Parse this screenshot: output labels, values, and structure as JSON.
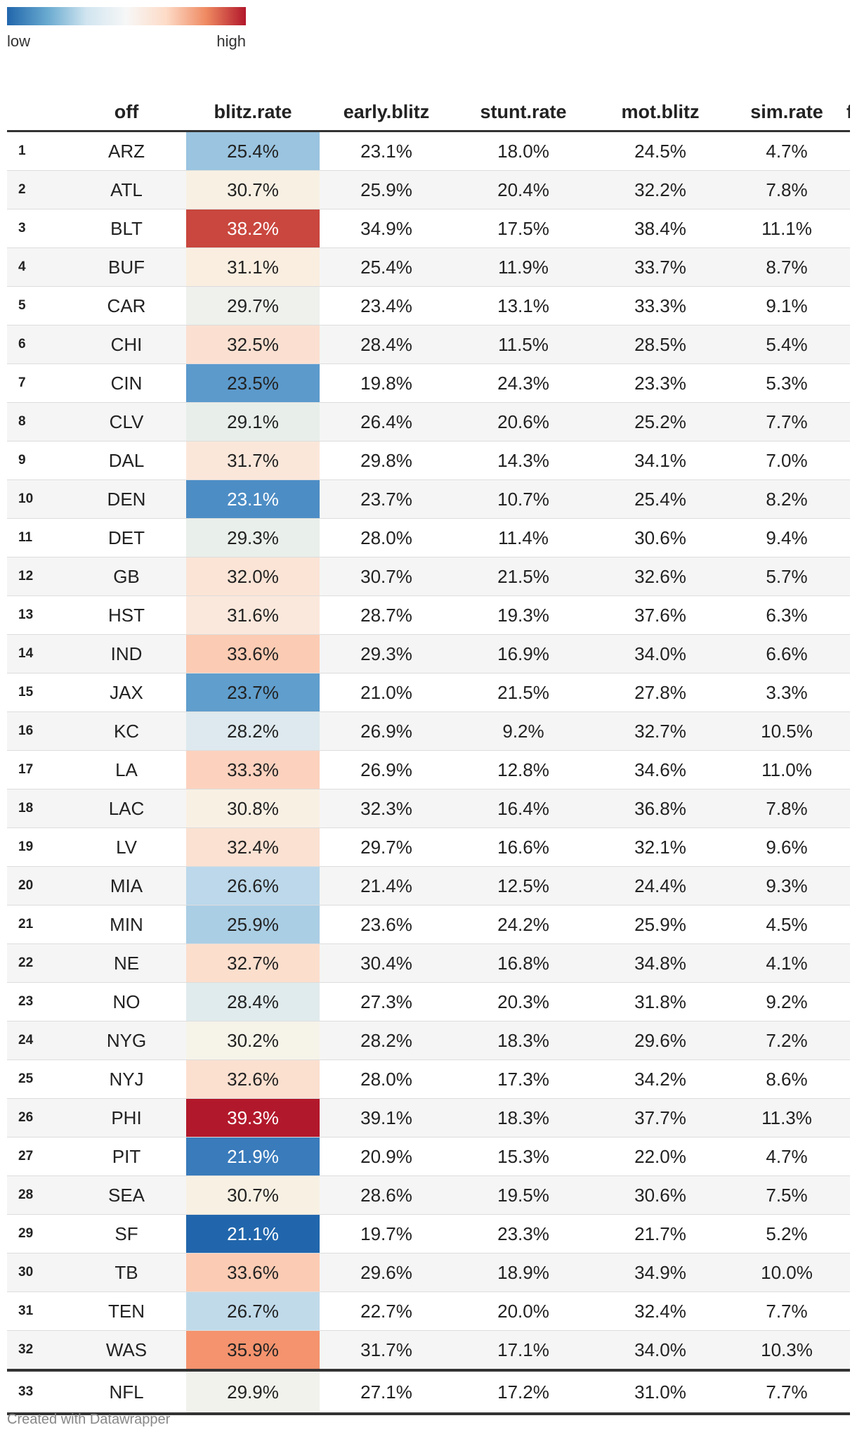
{
  "legend": {
    "low_label": "low",
    "high_label": "high",
    "colors": [
      "#2166ac",
      "#67a9cf",
      "#d1e5f0",
      "#f7f7f7",
      "#fddbc7",
      "#ef8a62",
      "#b2182b"
    ]
  },
  "table": {
    "columns": [
      "off",
      "blitz.rate",
      "early.blitz",
      "stunt.rate",
      "mot.blitz",
      "sim.rate",
      "fiv"
    ],
    "rows": [
      {
        "rank": "1",
        "off": "ARZ",
        "blitz_rate": "25.4%",
        "early_blitz": "23.1%",
        "stunt_rate": "18.0%",
        "mot_blitz": "24.5%",
        "sim_rate": "4.7%",
        "heat_color": "#9ac4e0"
      },
      {
        "rank": "2",
        "off": "ATL",
        "blitz_rate": "30.7%",
        "early_blitz": "25.9%",
        "stunt_rate": "20.4%",
        "mot_blitz": "32.2%",
        "sim_rate": "7.8%",
        "heat_color": "#f8f0e3"
      },
      {
        "rank": "3",
        "off": "BLT",
        "blitz_rate": "38.2%",
        "early_blitz": "34.9%",
        "stunt_rate": "17.5%",
        "mot_blitz": "38.4%",
        "sim_rate": "11.1%",
        "heat_color": "#c9473e"
      },
      {
        "rank": "4",
        "off": "BUF",
        "blitz_rate": "31.1%",
        "early_blitz": "25.4%",
        "stunt_rate": "11.9%",
        "mot_blitz": "33.7%",
        "sim_rate": "8.7%",
        "heat_color": "#faeee0"
      },
      {
        "rank": "5",
        "off": "CAR",
        "blitz_rate": "29.7%",
        "early_blitz": "23.4%",
        "stunt_rate": "13.1%",
        "mot_blitz": "33.3%",
        "sim_rate": "9.1%",
        "heat_color": "#eef1ec"
      },
      {
        "rank": "6",
        "off": "CHI",
        "blitz_rate": "32.5%",
        "early_blitz": "28.4%",
        "stunt_rate": "11.5%",
        "mot_blitz": "28.5%",
        "sim_rate": "5.4%",
        "heat_color": "#fbe0d1"
      },
      {
        "rank": "7",
        "off": "CIN",
        "blitz_rate": "23.5%",
        "early_blitz": "19.8%",
        "stunt_rate": "24.3%",
        "mot_blitz": "23.3%",
        "sim_rate": "5.3%",
        "heat_color": "#5c9acc"
      },
      {
        "rank": "8",
        "off": "CLV",
        "blitz_rate": "29.1%",
        "early_blitz": "26.4%",
        "stunt_rate": "20.6%",
        "mot_blitz": "25.2%",
        "sim_rate": "7.7%",
        "heat_color": "#e8efea"
      },
      {
        "rank": "9",
        "off": "DAL",
        "blitz_rate": "31.7%",
        "early_blitz": "29.8%",
        "stunt_rate": "14.3%",
        "mot_blitz": "34.1%",
        "sim_rate": "7.0%",
        "heat_color": "#fbe7da"
      },
      {
        "rank": "10",
        "off": "DEN",
        "blitz_rate": "23.1%",
        "early_blitz": "23.7%",
        "stunt_rate": "10.7%",
        "mot_blitz": "25.4%",
        "sim_rate": "8.2%",
        "heat_color": "#4d8dc5"
      },
      {
        "rank": "11",
        "off": "DET",
        "blitz_rate": "29.3%",
        "early_blitz": "28.0%",
        "stunt_rate": "11.4%",
        "mot_blitz": "30.6%",
        "sim_rate": "9.4%",
        "heat_color": "#e9efea"
      },
      {
        "rank": "12",
        "off": "GB",
        "blitz_rate": "32.0%",
        "early_blitz": "30.7%",
        "stunt_rate": "21.5%",
        "mot_blitz": "32.6%",
        "sim_rate": "5.7%",
        "heat_color": "#fbe4d6"
      },
      {
        "rank": "13",
        "off": "HST",
        "blitz_rate": "31.6%",
        "early_blitz": "28.7%",
        "stunt_rate": "19.3%",
        "mot_blitz": "37.6%",
        "sim_rate": "6.3%",
        "heat_color": "#fbe8dc"
      },
      {
        "rank": "14",
        "off": "IND",
        "blitz_rate": "33.6%",
        "early_blitz": "29.3%",
        "stunt_rate": "16.9%",
        "mot_blitz": "34.0%",
        "sim_rate": "6.6%",
        "heat_color": "#fccbb3"
      },
      {
        "rank": "15",
        "off": "JAX",
        "blitz_rate": "23.7%",
        "early_blitz": "21.0%",
        "stunt_rate": "21.5%",
        "mot_blitz": "27.8%",
        "sim_rate": "3.3%",
        "heat_color": "#609ecd"
      },
      {
        "rank": "16",
        "off": "KC",
        "blitz_rate": "28.2%",
        "early_blitz": "26.9%",
        "stunt_rate": "9.2%",
        "mot_blitz": "32.7%",
        "sim_rate": "10.5%",
        "heat_color": "#dde9ee"
      },
      {
        "rank": "17",
        "off": "LA",
        "blitz_rate": "33.3%",
        "early_blitz": "26.9%",
        "stunt_rate": "12.8%",
        "mot_blitz": "34.6%",
        "sim_rate": "11.0%",
        "heat_color": "#fcd2be"
      },
      {
        "rank": "18",
        "off": "LAC",
        "blitz_rate": "30.8%",
        "early_blitz": "32.3%",
        "stunt_rate": "16.4%",
        "mot_blitz": "36.8%",
        "sim_rate": "7.8%",
        "heat_color": "#f9f0e4"
      },
      {
        "rank": "19",
        "off": "LV",
        "blitz_rate": "32.4%",
        "early_blitz": "29.7%",
        "stunt_rate": "16.6%",
        "mot_blitz": "32.1%",
        "sim_rate": "9.6%",
        "heat_color": "#fbe1d2"
      },
      {
        "rank": "20",
        "off": "MIA",
        "blitz_rate": "26.6%",
        "early_blitz": "21.4%",
        "stunt_rate": "12.5%",
        "mot_blitz": "24.4%",
        "sim_rate": "9.3%",
        "heat_color": "#bcd8ea"
      },
      {
        "rank": "21",
        "off": "MIN",
        "blitz_rate": "25.9%",
        "early_blitz": "23.6%",
        "stunt_rate": "24.2%",
        "mot_blitz": "25.9%",
        "sim_rate": "4.5%",
        "heat_color": "#aacee4"
      },
      {
        "rank": "22",
        "off": "NE",
        "blitz_rate": "32.7%",
        "early_blitz": "30.4%",
        "stunt_rate": "16.8%",
        "mot_blitz": "34.8%",
        "sim_rate": "4.1%",
        "heat_color": "#fcdecd"
      },
      {
        "rank": "23",
        "off": "NO",
        "blitz_rate": "28.4%",
        "early_blitz": "27.3%",
        "stunt_rate": "20.3%",
        "mot_blitz": "31.8%",
        "sim_rate": "9.2%",
        "heat_color": "#e0ebed"
      },
      {
        "rank": "24",
        "off": "NYG",
        "blitz_rate": "30.2%",
        "early_blitz": "28.2%",
        "stunt_rate": "18.3%",
        "mot_blitz": "29.6%",
        "sim_rate": "7.2%",
        "heat_color": "#f6f4e9"
      },
      {
        "rank": "25",
        "off": "NYJ",
        "blitz_rate": "32.6%",
        "early_blitz": "28.0%",
        "stunt_rate": "17.3%",
        "mot_blitz": "34.2%",
        "sim_rate": "8.6%",
        "heat_color": "#fbdfcf"
      },
      {
        "rank": "26",
        "off": "PHI",
        "blitz_rate": "39.3%",
        "early_blitz": "39.1%",
        "stunt_rate": "18.3%",
        "mot_blitz": "37.7%",
        "sim_rate": "11.3%",
        "heat_color": "#b2182b"
      },
      {
        "rank": "27",
        "off": "PIT",
        "blitz_rate": "21.9%",
        "early_blitz": "20.9%",
        "stunt_rate": "15.3%",
        "mot_blitz": "22.0%",
        "sim_rate": "4.7%",
        "heat_color": "#3a7bbb"
      },
      {
        "rank": "28",
        "off": "SEA",
        "blitz_rate": "30.7%",
        "early_blitz": "28.6%",
        "stunt_rate": "19.5%",
        "mot_blitz": "30.6%",
        "sim_rate": "7.5%",
        "heat_color": "#f8f0e3"
      },
      {
        "rank": "29",
        "off": "SF",
        "blitz_rate": "21.1%",
        "early_blitz": "19.7%",
        "stunt_rate": "23.3%",
        "mot_blitz": "21.7%",
        "sim_rate": "5.2%",
        "heat_color": "#2166ac"
      },
      {
        "rank": "30",
        "off": "TB",
        "blitz_rate": "33.6%",
        "early_blitz": "29.6%",
        "stunt_rate": "18.9%",
        "mot_blitz": "34.9%",
        "sim_rate": "10.0%",
        "heat_color": "#fccbb3"
      },
      {
        "rank": "31",
        "off": "TEN",
        "blitz_rate": "26.7%",
        "early_blitz": "22.7%",
        "stunt_rate": "20.0%",
        "mot_blitz": "32.4%",
        "sim_rate": "7.7%",
        "heat_color": "#c0daea"
      },
      {
        "rank": "32",
        "off": "WAS",
        "blitz_rate": "35.9%",
        "early_blitz": "31.7%",
        "stunt_rate": "17.1%",
        "mot_blitz": "34.0%",
        "sim_rate": "10.3%",
        "heat_color": "#f4936e"
      }
    ],
    "total": {
      "rank": "33",
      "off": "NFL",
      "blitz_rate": "29.9%",
      "early_blitz": "27.1%",
      "stunt_rate": "17.2%",
      "mot_blitz": "31.0%",
      "sim_rate": "7.7%",
      "heat_color": "#f1f2ec"
    }
  },
  "credit": "Created with Datawrapper"
}
